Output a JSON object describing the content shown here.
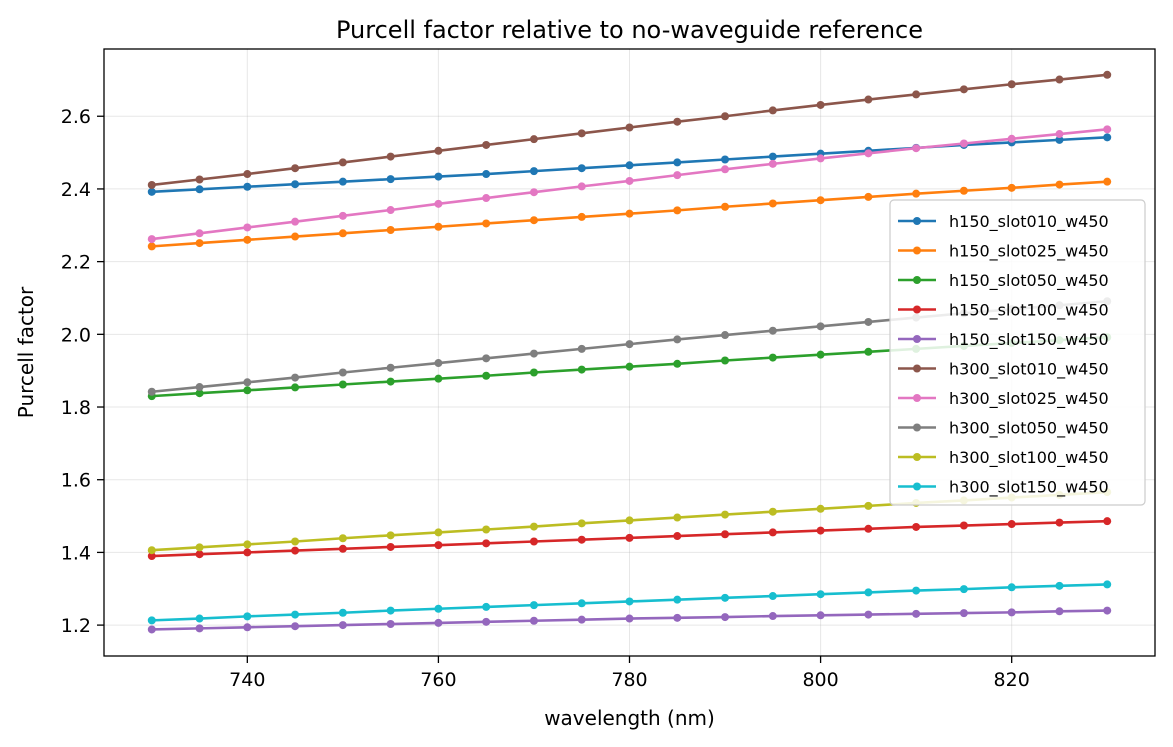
{
  "chart_data": {
    "type": "line",
    "title": "Purcell factor relative to no-waveguide reference",
    "xlabel": "wavelength (nm)",
    "ylabel": "Purcell factor",
    "xlim": [
      725,
      835
    ],
    "ylim": [
      1.115,
      2.785
    ],
    "xticks": [
      740,
      760,
      780,
      800,
      820
    ],
    "xtick_labels": [
      "740",
      "760",
      "780",
      "800",
      "820"
    ],
    "yticks": [
      1.2,
      1.4,
      1.6,
      1.8,
      2.0,
      2.2,
      2.4,
      2.6
    ],
    "ytick_labels": [
      "1.2",
      "1.4",
      "1.6",
      "1.8",
      "2.0",
      "2.2",
      "2.4",
      "2.6"
    ],
    "grid": true,
    "legend_position": "right",
    "markers": true,
    "x": [
      730,
      735,
      740,
      745,
      750,
      755,
      760,
      765,
      770,
      775,
      780,
      785,
      790,
      795,
      800,
      805,
      810,
      815,
      820,
      825,
      830
    ],
    "series": [
      {
        "name": "h150_slot010_w450",
        "color": "#1f77b4",
        "values": [
          2.392,
          2.399,
          2.406,
          2.413,
          2.42,
          2.427,
          2.434,
          2.441,
          2.449,
          2.457,
          2.465,
          2.473,
          2.481,
          2.489,
          2.497,
          2.505,
          2.513,
          2.521,
          2.528,
          2.535,
          2.542
        ]
      },
      {
        "name": "h150_slot025_w450",
        "color": "#ff7f0e",
        "values": [
          2.242,
          2.251,
          2.26,
          2.269,
          2.278,
          2.287,
          2.296,
          2.305,
          2.314,
          2.323,
          2.332,
          2.341,
          2.351,
          2.36,
          2.369,
          2.378,
          2.387,
          2.395,
          2.403,
          2.412,
          2.42
        ]
      },
      {
        "name": "h150_slot050_w450",
        "color": "#2ca02c",
        "values": [
          1.83,
          1.838,
          1.846,
          1.854,
          1.862,
          1.87,
          1.878,
          1.886,
          1.895,
          1.903,
          1.911,
          1.919,
          1.928,
          1.936,
          1.944,
          1.952,
          1.96,
          1.968,
          1.976,
          1.984,
          1.992
        ]
      },
      {
        "name": "h150_slot100_w450",
        "color": "#d62728",
        "values": [
          1.39,
          1.395,
          1.4,
          1.405,
          1.41,
          1.415,
          1.42,
          1.425,
          1.43,
          1.435,
          1.44,
          1.445,
          1.45,
          1.455,
          1.46,
          1.465,
          1.47,
          1.474,
          1.478,
          1.482,
          1.486
        ]
      },
      {
        "name": "h150_slot150_w450",
        "color": "#9467bd",
        "values": [
          1.188,
          1.191,
          1.194,
          1.197,
          1.2,
          1.203,
          1.206,
          1.209,
          1.212,
          1.215,
          1.218,
          1.22,
          1.222,
          1.225,
          1.227,
          1.229,
          1.231,
          1.233,
          1.235,
          1.238,
          1.24
        ]
      },
      {
        "name": "h300_slot010_w450",
        "color": "#8c564b",
        "values": [
          2.411,
          2.426,
          2.441,
          2.457,
          2.473,
          2.489,
          2.505,
          2.521,
          2.537,
          2.553,
          2.569,
          2.585,
          2.6,
          2.616,
          2.631,
          2.646,
          2.66,
          2.674,
          2.688,
          2.701,
          2.714
        ]
      },
      {
        "name": "h300_slot025_w450",
        "color": "#e377c2",
        "values": [
          2.262,
          2.278,
          2.294,
          2.31,
          2.326,
          2.342,
          2.359,
          2.375,
          2.391,
          2.407,
          2.422,
          2.438,
          2.454,
          2.469,
          2.484,
          2.498,
          2.512,
          2.525,
          2.538,
          2.551,
          2.564
        ]
      },
      {
        "name": "h300_slot050_w450",
        "color": "#7f7f7f",
        "values": [
          1.842,
          1.855,
          1.868,
          1.881,
          1.895,
          1.908,
          1.921,
          1.934,
          1.947,
          1.96,
          1.973,
          1.986,
          1.998,
          2.01,
          2.022,
          2.034,
          2.046,
          2.058,
          2.069,
          2.08,
          2.091
        ]
      },
      {
        "name": "h300_slot100_w450",
        "color": "#bcbd22",
        "values": [
          1.406,
          1.414,
          1.422,
          1.43,
          1.439,
          1.447,
          1.455,
          1.463,
          1.471,
          1.48,
          1.488,
          1.496,
          1.504,
          1.512,
          1.52,
          1.528,
          1.536,
          1.543,
          1.551,
          1.558,
          1.566
        ]
      },
      {
        "name": "h300_slot150_w450",
        "color": "#17becf",
        "values": [
          1.213,
          1.218,
          1.224,
          1.229,
          1.234,
          1.24,
          1.245,
          1.25,
          1.255,
          1.26,
          1.265,
          1.27,
          1.275,
          1.28,
          1.285,
          1.29,
          1.295,
          1.299,
          1.304,
          1.308,
          1.312
        ]
      }
    ]
  }
}
